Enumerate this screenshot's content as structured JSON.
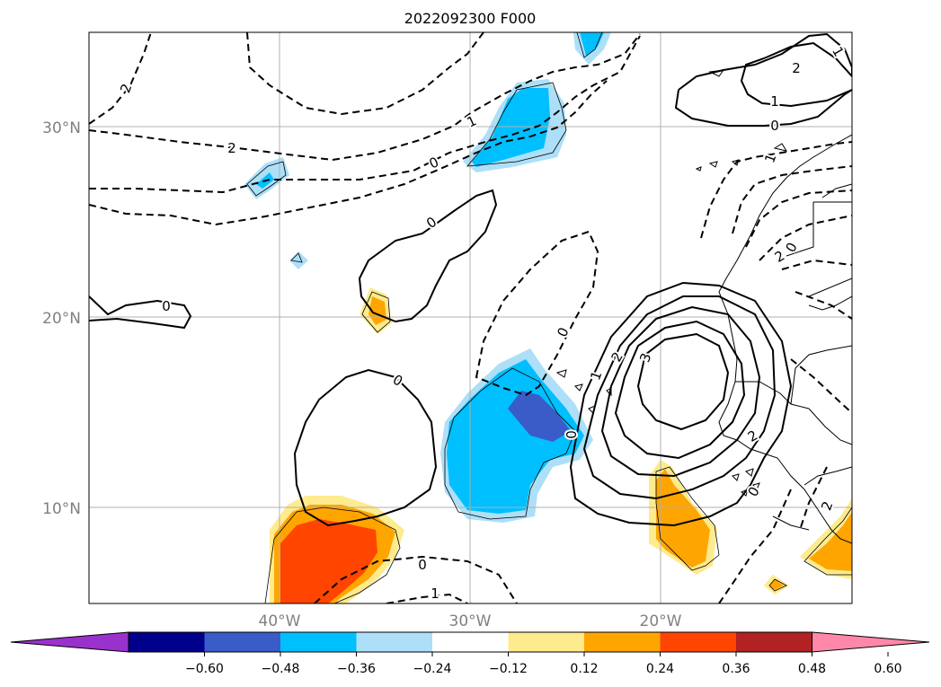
{
  "title": "2022092300 F000",
  "lat_labels": [
    "30°N",
    "20°N",
    "10°N"
  ],
  "lon_labels": [
    "40°W",
    "30°W",
    "20°W"
  ],
  "colorbar": {
    "colors": [
      "#9932CC",
      "#00008B",
      "#3A5CC8",
      "#00BFFF",
      "#ADDFF8",
      "#FFFFFF",
      "#FDEB8E",
      "#FFA500",
      "#FF4500",
      "#B22222",
      "#FF88AA"
    ],
    "ticks": [
      "−0.60",
      "−0.48",
      "−0.36",
      "−0.24",
      "−0.12",
      "0.12",
      "0.24",
      "0.36",
      "0.48",
      "0.60"
    ]
  },
  "contour_labels": [
    "2",
    "2",
    "1",
    "0",
    "0",
    "0",
    "0",
    "0",
    "0",
    "1",
    "2",
    "3",
    "2",
    "1",
    "0",
    "1",
    "1",
    "2",
    "0",
    "0",
    "2",
    "0",
    "1",
    "2"
  ]
}
